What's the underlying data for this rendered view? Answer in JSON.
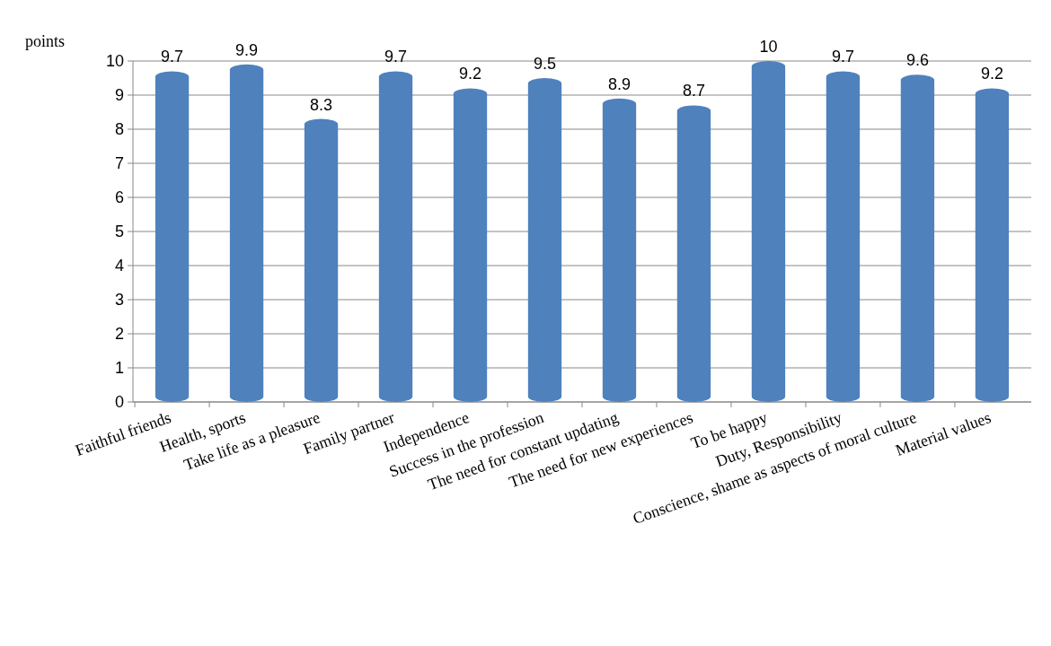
{
  "chart_data": {
    "type": "bar",
    "ylabel": "points",
    "categories": [
      "Faithful friends",
      "Health, sports",
      "Take life as a pleasure",
      "Family partner",
      "Independence",
      "Success in the profession",
      "The need for constant updating",
      "The need for new experiences",
      "To be happy",
      "Duty, Responsibility",
      "Conscience, shame as aspects of moral culture",
      "Material values"
    ],
    "values": [
      9.7,
      9.9,
      8.3,
      9.7,
      9.2,
      9.5,
      8.9,
      8.7,
      10,
      9.7,
      9.6,
      9.2
    ],
    "color": "#4f81bd",
    "ylim": [
      0,
      10
    ],
    "yticks": [
      0,
      1,
      2,
      3,
      4,
      5,
      6,
      7,
      8,
      9,
      10
    ],
    "grid": "y",
    "data_labels": true
  }
}
